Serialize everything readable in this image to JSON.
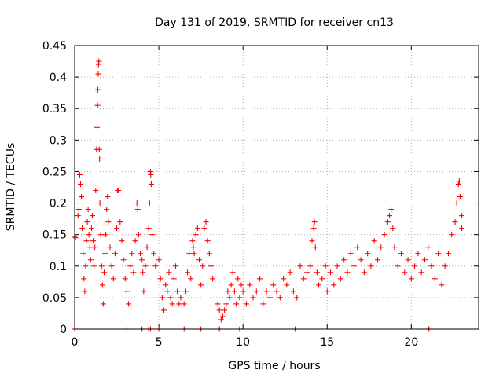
{
  "chart_data": {
    "type": "scatter",
    "title": "Day 131 of 2019, SRMTID for receiver cn13",
    "xlabel": "GPS time / hours",
    "ylabel": "SRMTID / TECUs",
    "xlim": [
      0,
      24
    ],
    "ylim": [
      0,
      0.45
    ],
    "x_ticks": [
      0,
      5,
      10,
      15,
      20
    ],
    "x_tick_labels": [
      "0",
      "5",
      "10",
      "15",
      "20"
    ],
    "y_ticks": [
      0,
      0.05,
      0.1,
      0.15,
      0.2,
      0.25,
      0.3,
      0.35,
      0.4,
      0.45
    ],
    "y_tick_labels": [
      "0",
      "0.05",
      "0.1",
      "0.15",
      "0.2",
      "0.25",
      "0.3",
      "0.35",
      "0.4",
      "0.45"
    ],
    "grid": true,
    "marker": "+",
    "color": "#ff0000",
    "series": [
      {
        "name": "SRMTID",
        "points": [
          [
            0.0,
            0.147
          ],
          [
            0.05,
            0.145
          ],
          [
            0.2,
            0.18
          ],
          [
            0.25,
            0.19
          ],
          [
            0.3,
            0.245
          ],
          [
            0.35,
            0.23
          ],
          [
            0.4,
            0.21
          ],
          [
            0.45,
            0.16
          ],
          [
            0.5,
            0.12
          ],
          [
            0.55,
            0.08
          ],
          [
            0.6,
            0.06
          ],
          [
            0.65,
            0.1
          ],
          [
            0.7,
            0.14
          ],
          [
            0.75,
            0.17
          ],
          [
            0.8,
            0.19
          ],
          [
            0.85,
            0.15
          ],
          [
            0.9,
            0.13
          ],
          [
            0.95,
            0.11
          ],
          [
            1.0,
            0.16
          ],
          [
            1.05,
            0.18
          ],
          [
            1.1,
            0.14
          ],
          [
            1.15,
            0.1
          ],
          [
            1.2,
            0.13
          ],
          [
            1.25,
            0.22
          ],
          [
            1.3,
            0.285
          ],
          [
            1.33,
            0.32
          ],
          [
            1.36,
            0.355
          ],
          [
            1.38,
            0.38
          ],
          [
            1.4,
            0.405
          ],
          [
            1.42,
            0.42
          ],
          [
            1.44,
            0.425
          ],
          [
            1.46,
            0.285
          ],
          [
            1.48,
            0.27
          ],
          [
            1.5,
            0.2
          ],
          [
            1.55,
            0.15
          ],
          [
            1.6,
            0.1
          ],
          [
            1.65,
            0.07
          ],
          [
            1.7,
            0.04
          ],
          [
            1.75,
            0.09
          ],
          [
            1.8,
            0.12
          ],
          [
            1.85,
            0.15
          ],
          [
            1.9,
            0.19
          ],
          [
            1.95,
            0.21
          ],
          [
            2.0,
            0.17
          ],
          [
            2.1,
            0.13
          ],
          [
            2.2,
            0.1
          ],
          [
            2.3,
            0.08
          ],
          [
            2.4,
            0.12
          ],
          [
            2.5,
            0.16
          ],
          [
            2.55,
            0.22
          ],
          [
            2.6,
            0.22
          ],
          [
            2.7,
            0.17
          ],
          [
            2.8,
            0.14
          ],
          [
            2.9,
            0.11
          ],
          [
            3.0,
            0.08
          ],
          [
            3.1,
            0.06
          ],
          [
            3.2,
            0.04
          ],
          [
            3.3,
            0.1
          ],
          [
            3.4,
            0.12
          ],
          [
            3.5,
            0.09
          ],
          [
            3.6,
            0.14
          ],
          [
            3.7,
            0.2
          ],
          [
            3.75,
            0.19
          ],
          [
            3.8,
            0.15
          ],
          [
            3.9,
            0.12
          ],
          [
            4.0,
            0.11
          ],
          [
            4.05,
            0.09
          ],
          [
            4.1,
            0.06
          ],
          [
            4.2,
            0.1
          ],
          [
            4.3,
            0.13
          ],
          [
            4.4,
            0.16
          ],
          [
            4.45,
            0.2
          ],
          [
            4.5,
            0.25
          ],
          [
            4.52,
            0.245
          ],
          [
            4.55,
            0.23
          ],
          [
            4.6,
            0.15
          ],
          [
            4.7,
            0.12
          ],
          [
            4.8,
            0.1
          ],
          [
            5.0,
            0.11
          ],
          [
            5.1,
            0.08
          ],
          [
            5.2,
            0.05
          ],
          [
            5.3,
            0.03
          ],
          [
            5.4,
            0.07
          ],
          [
            5.5,
            0.06
          ],
          [
            5.6,
            0.09
          ],
          [
            5.7,
            0.05
          ],
          [
            5.8,
            0.04
          ],
          [
            5.9,
            0.08
          ],
          [
            6.0,
            0.1
          ],
          [
            6.1,
            0.06
          ],
          [
            6.2,
            0.04
          ],
          [
            6.3,
            0.05
          ],
          [
            6.5,
            0.04
          ],
          [
            6.6,
            0.06
          ],
          [
            6.7,
            0.09
          ],
          [
            6.8,
            0.12
          ],
          [
            6.9,
            0.08
          ],
          [
            7.0,
            0.14
          ],
          [
            7.05,
            0.13
          ],
          [
            7.1,
            0.12
          ],
          [
            7.2,
            0.15
          ],
          [
            7.3,
            0.16
          ],
          [
            7.4,
            0.11
          ],
          [
            7.5,
            0.07
          ],
          [
            7.6,
            0.1
          ],
          [
            7.7,
            0.16
          ],
          [
            7.8,
            0.17
          ],
          [
            7.9,
            0.14
          ],
          [
            8.0,
            0.12
          ],
          [
            8.1,
            0.1
          ],
          [
            8.2,
            0.08
          ],
          [
            8.5,
            0.04
          ],
          [
            8.6,
            0.03
          ],
          [
            8.7,
            0.015
          ],
          [
            8.8,
            0.02
          ],
          [
            8.9,
            0.03
          ],
          [
            9.0,
            0.04
          ],
          [
            9.1,
            0.06
          ],
          [
            9.2,
            0.05
          ],
          [
            9.3,
            0.07
          ],
          [
            9.4,
            0.09
          ],
          [
            9.5,
            0.06
          ],
          [
            9.6,
            0.04
          ],
          [
            9.7,
            0.08
          ],
          [
            9.8,
            0.05
          ],
          [
            9.9,
            0.07
          ],
          [
            10.0,
            0.06
          ],
          [
            10.2,
            0.04
          ],
          [
            10.4,
            0.07
          ],
          [
            10.6,
            0.05
          ],
          [
            10.8,
            0.06
          ],
          [
            11.0,
            0.08
          ],
          [
            11.2,
            0.04
          ],
          [
            11.4,
            0.06
          ],
          [
            11.6,
            0.05
          ],
          [
            11.8,
            0.07
          ],
          [
            12.0,
            0.06
          ],
          [
            12.2,
            0.05
          ],
          [
            12.4,
            0.08
          ],
          [
            12.6,
            0.07
          ],
          [
            12.8,
            0.09
          ],
          [
            13.0,
            0.06
          ],
          [
            13.2,
            0.05
          ],
          [
            13.4,
            0.1
          ],
          [
            13.6,
            0.08
          ],
          [
            13.8,
            0.09
          ],
          [
            14.0,
            0.1
          ],
          [
            14.1,
            0.14
          ],
          [
            14.2,
            0.16
          ],
          [
            14.25,
            0.17
          ],
          [
            14.3,
            0.13
          ],
          [
            14.4,
            0.09
          ],
          [
            14.5,
            0.07
          ],
          [
            14.7,
            0.08
          ],
          [
            14.9,
            0.1
          ],
          [
            15.0,
            0.06
          ],
          [
            15.2,
            0.09
          ],
          [
            15.4,
            0.07
          ],
          [
            15.6,
            0.1
          ],
          [
            15.8,
            0.08
          ],
          [
            16.0,
            0.11
          ],
          [
            16.2,
            0.09
          ],
          [
            16.4,
            0.12
          ],
          [
            16.6,
            0.1
          ],
          [
            16.8,
            0.13
          ],
          [
            17.0,
            0.11
          ],
          [
            17.2,
            0.09
          ],
          [
            17.4,
            0.12
          ],
          [
            17.6,
            0.1
          ],
          [
            17.8,
            0.14
          ],
          [
            18.0,
            0.11
          ],
          [
            18.2,
            0.13
          ],
          [
            18.4,
            0.15
          ],
          [
            18.6,
            0.17
          ],
          [
            18.7,
            0.18
          ],
          [
            18.8,
            0.19
          ],
          [
            18.9,
            0.16
          ],
          [
            19.0,
            0.13
          ],
          [
            19.2,
            0.1
          ],
          [
            19.4,
            0.12
          ],
          [
            19.6,
            0.09
          ],
          [
            19.8,
            0.11
          ],
          [
            20.0,
            0.08
          ],
          [
            20.2,
            0.1
          ],
          [
            20.4,
            0.12
          ],
          [
            20.6,
            0.09
          ],
          [
            20.8,
            0.11
          ],
          [
            21.0,
            0.13
          ],
          [
            21.2,
            0.1
          ],
          [
            21.4,
            0.08
          ],
          [
            21.6,
            0.12
          ],
          [
            21.8,
            0.07
          ],
          [
            22.0,
            0.1
          ],
          [
            22.2,
            0.12
          ],
          [
            22.4,
            0.15
          ],
          [
            22.6,
            0.17
          ],
          [
            22.7,
            0.2
          ],
          [
            22.8,
            0.23
          ],
          [
            22.85,
            0.235
          ],
          [
            22.9,
            0.21
          ],
          [
            23.0,
            0.18
          ],
          [
            23.0,
            0.16
          ],
          [
            0.0,
            0.0
          ],
          [
            3.1,
            0.0
          ],
          [
            4.0,
            0.0
          ],
          [
            4.4,
            0.0
          ],
          [
            4.5,
            0.0
          ],
          [
            5.0,
            0.0
          ],
          [
            6.5,
            0.0
          ],
          [
            7.5,
            0.0
          ],
          [
            8.6,
            0.0
          ],
          [
            9.8,
            0.0
          ],
          [
            13.1,
            0.0
          ],
          [
            21.0,
            0.0
          ],
          [
            21.05,
            0.0
          ]
        ]
      }
    ]
  }
}
